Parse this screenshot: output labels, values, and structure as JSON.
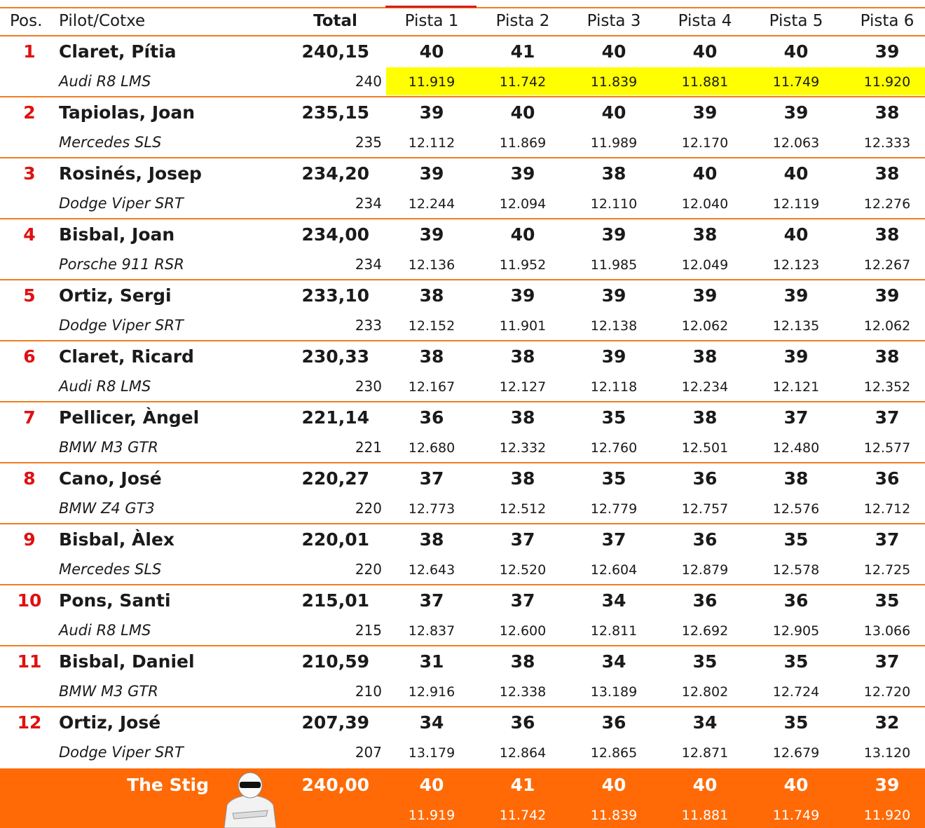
{
  "header": {
    "columns": [
      "Pos.",
      "Pilot/Cotxe",
      "Total",
      "Pista 1",
      "Pista 2",
      "Pista 3",
      "Pista 4",
      "Pista 5",
      "Pista 6"
    ]
  },
  "rows": [
    {
      "pos": "1",
      "driver": "Claret, Pítia",
      "total": "240,15",
      "laps": [
        "40",
        "41",
        "40",
        "40",
        "40",
        "39"
      ],
      "car": "Audi R8 LMS",
      "points": "240",
      "times": [
        "11.919",
        "11.742",
        "11.839",
        "11.881",
        "11.749",
        "11.920"
      ]
    },
    {
      "pos": "2",
      "driver": "Tapiolas, Joan",
      "total": "235,15",
      "laps": [
        "39",
        "40",
        "40",
        "39",
        "39",
        "38"
      ],
      "car": "Mercedes SLS",
      "points": "235",
      "times": [
        "12.112",
        "11.869",
        "11.989",
        "12.170",
        "12.063",
        "12.333"
      ]
    },
    {
      "pos": "3",
      "driver": "Rosinés, Josep",
      "total": "234,20",
      "laps": [
        "39",
        "39",
        "38",
        "40",
        "40",
        "38"
      ],
      "car": "Dodge Viper SRT",
      "points": "234",
      "times": [
        "12.244",
        "12.094",
        "12.110",
        "12.040",
        "12.119",
        "12.276"
      ]
    },
    {
      "pos": "4",
      "driver": "Bisbal, Joan",
      "total": "234,00",
      "laps": [
        "39",
        "40",
        "39",
        "38",
        "40",
        "38"
      ],
      "car": "Porsche 911 RSR",
      "points": "234",
      "times": [
        "12.136",
        "11.952",
        "11.985",
        "12.049",
        "12.123",
        "12.267"
      ]
    },
    {
      "pos": "5",
      "driver": "Ortiz, Sergi",
      "total": "233,10",
      "laps": [
        "38",
        "39",
        "39",
        "39",
        "39",
        "39"
      ],
      "car": "Dodge Viper SRT",
      "points": "233",
      "times": [
        "12.152",
        "11.901",
        "12.138",
        "12.062",
        "12.135",
        "12.062"
      ]
    },
    {
      "pos": "6",
      "driver": "Claret, Ricard",
      "total": "230,33",
      "laps": [
        "38",
        "38",
        "39",
        "38",
        "39",
        "38"
      ],
      "car": "Audi R8 LMS",
      "points": "230",
      "times": [
        "12.167",
        "12.127",
        "12.118",
        "12.234",
        "12.121",
        "12.352"
      ]
    },
    {
      "pos": "7",
      "driver": "Pellicer, Àngel",
      "total": "221,14",
      "laps": [
        "36",
        "38",
        "35",
        "38",
        "37",
        "37"
      ],
      "car": "BMW M3 GTR",
      "points": "221",
      "times": [
        "12.680",
        "12.332",
        "12.760",
        "12.501",
        "12.480",
        "12.577"
      ]
    },
    {
      "pos": "8",
      "driver": "Cano, José",
      "total": "220,27",
      "laps": [
        "37",
        "38",
        "35",
        "36",
        "38",
        "36"
      ],
      "car": "BMW Z4 GT3",
      "points": "220",
      "times": [
        "12.773",
        "12.512",
        "12.779",
        "12.757",
        "12.576",
        "12.712"
      ]
    },
    {
      "pos": "9",
      "driver": "Bisbal, Àlex",
      "total": "220,01",
      "laps": [
        "38",
        "37",
        "37",
        "36",
        "35",
        "37"
      ],
      "car": "Mercedes SLS",
      "points": "220",
      "times": [
        "12.643",
        "12.520",
        "12.604",
        "12.879",
        "12.578",
        "12.725"
      ]
    },
    {
      "pos": "10",
      "driver": "Pons, Santi",
      "total": "215,01",
      "laps": [
        "37",
        "37",
        "34",
        "36",
        "36",
        "35"
      ],
      "car": "Audi R8 LMS",
      "points": "215",
      "times": [
        "12.837",
        "12.600",
        "12.811",
        "12.692",
        "12.905",
        "13.066"
      ]
    },
    {
      "pos": "11",
      "driver": "Bisbal, Daniel",
      "total": "210,59",
      "laps": [
        "31",
        "38",
        "34",
        "35",
        "35",
        "37"
      ],
      "car": "BMW M3 GTR",
      "points": "210",
      "times": [
        "12.916",
        "12.338",
        "13.189",
        "12.802",
        "12.724",
        "12.720"
      ]
    },
    {
      "pos": "12",
      "driver": "Ortiz, José",
      "total": "207,39",
      "laps": [
        "34",
        "36",
        "36",
        "34",
        "35",
        "32"
      ],
      "car": "Dodge Viper SRT",
      "points": "207",
      "times": [
        "13.179",
        "12.864",
        "12.865",
        "12.871",
        "12.679",
        "13.120"
      ]
    }
  ],
  "stig": {
    "driver": "The Stig",
    "total": "240,00",
    "laps": [
      "40",
      "41",
      "40",
      "40",
      "40",
      "39"
    ],
    "times": [
      "11.919",
      "11.742",
      "11.839",
      "11.881",
      "11.749",
      "11.920"
    ]
  }
}
